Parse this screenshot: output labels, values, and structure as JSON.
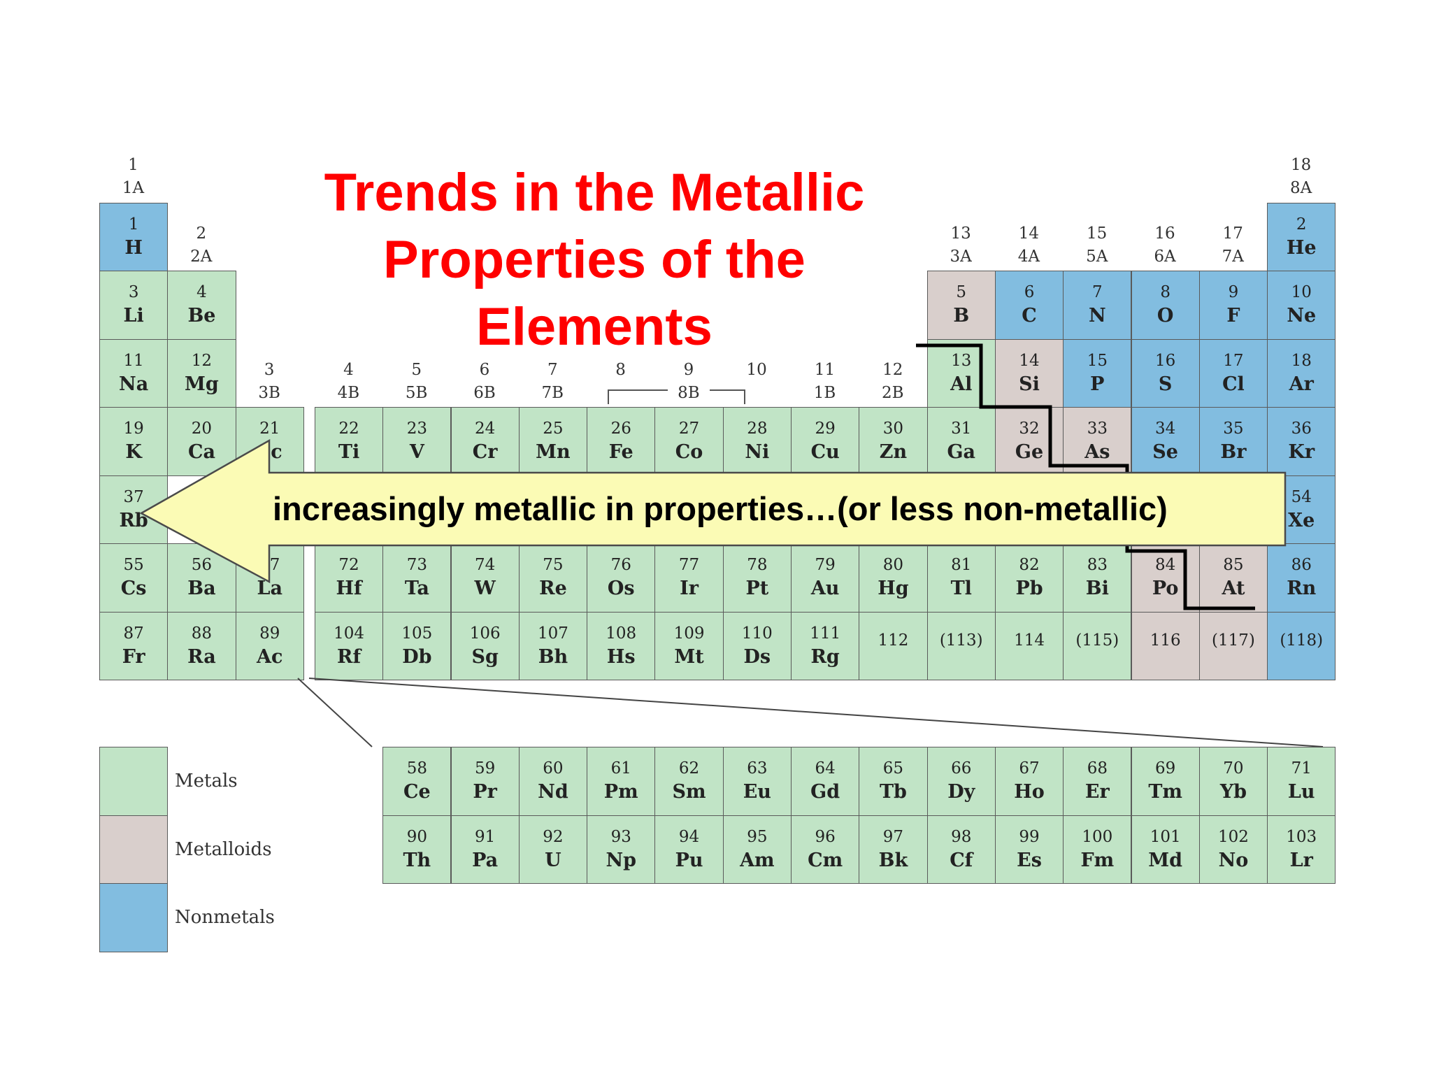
{
  "title": "Trends in the Metallic Properties of the Elements",
  "arrow_label": "increasingly metallic in properties…(or less non-metallic)",
  "colors": {
    "metal": "#c1e4c6",
    "metalloid": "#d9cfcc",
    "nonmetal": "#82bde0",
    "title": "#ff0000",
    "arrow_fill": "#fbfbb5"
  },
  "legend": [
    {
      "label": "Metals",
      "category": "metal"
    },
    {
      "label": "Metalloids",
      "category": "metalloid"
    },
    {
      "label": "Nonmetals",
      "category": "nonmetal"
    }
  ],
  "group_headers": [
    {
      "col": 1,
      "row": 0,
      "lines": [
        "1",
        "1A"
      ]
    },
    {
      "col": 2,
      "row": 1,
      "lines": [
        "2",
        "2A"
      ]
    },
    {
      "col": 3,
      "row": 3,
      "lines": [
        "3",
        "3B"
      ]
    },
    {
      "col": 4,
      "row": 3,
      "lines": [
        "4",
        "4B"
      ]
    },
    {
      "col": 5,
      "row": 3,
      "lines": [
        "5",
        "5B"
      ]
    },
    {
      "col": 6,
      "row": 3,
      "lines": [
        "6",
        "6B"
      ]
    },
    {
      "col": 7,
      "row": 3,
      "lines": [
        "7",
        "7B"
      ]
    },
    {
      "col": 8,
      "row": 3,
      "lines": [
        "8",
        ""
      ]
    },
    {
      "col": 9,
      "row": 3,
      "lines": [
        "9",
        "8B"
      ]
    },
    {
      "col": 10,
      "row": 3,
      "lines": [
        "10",
        ""
      ]
    },
    {
      "col": 11,
      "row": 3,
      "lines": [
        "11",
        "1B"
      ]
    },
    {
      "col": 12,
      "row": 3,
      "lines": [
        "12",
        "2B"
      ]
    },
    {
      "col": 13,
      "row": 1,
      "lines": [
        "13",
        "3A"
      ]
    },
    {
      "col": 14,
      "row": 1,
      "lines": [
        "14",
        "4A"
      ]
    },
    {
      "col": 15,
      "row": 1,
      "lines": [
        "15",
        "5A"
      ]
    },
    {
      "col": 16,
      "row": 1,
      "lines": [
        "16",
        "6A"
      ]
    },
    {
      "col": 17,
      "row": 1,
      "lines": [
        "17",
        "7A"
      ]
    },
    {
      "col": 18,
      "row": 0,
      "lines": [
        "18",
        "8A"
      ]
    }
  ],
  "elements": [
    {
      "n": "1",
      "s": "H",
      "row": 1,
      "col": 1,
      "t": "nonmetal"
    },
    {
      "n": "2",
      "s": "He",
      "row": 1,
      "col": 18,
      "t": "nonmetal"
    },
    {
      "n": "3",
      "s": "Li",
      "row": 2,
      "col": 1,
      "t": "metal"
    },
    {
      "n": "4",
      "s": "Be",
      "row": 2,
      "col": 2,
      "t": "metal"
    },
    {
      "n": "5",
      "s": "B",
      "row": 2,
      "col": 13,
      "t": "metalloid"
    },
    {
      "n": "6",
      "s": "C",
      "row": 2,
      "col": 14,
      "t": "nonmetal"
    },
    {
      "n": "7",
      "s": "N",
      "row": 2,
      "col": 15,
      "t": "nonmetal"
    },
    {
      "n": "8",
      "s": "O",
      "row": 2,
      "col": 16,
      "t": "nonmetal"
    },
    {
      "n": "9",
      "s": "F",
      "row": 2,
      "col": 17,
      "t": "nonmetal"
    },
    {
      "n": "10",
      "s": "Ne",
      "row": 2,
      "col": 18,
      "t": "nonmetal"
    },
    {
      "n": "11",
      "s": "Na",
      "row": 3,
      "col": 1,
      "t": "metal"
    },
    {
      "n": "12",
      "s": "Mg",
      "row": 3,
      "col": 2,
      "t": "metal"
    },
    {
      "n": "13",
      "s": "Al",
      "row": 3,
      "col": 13,
      "t": "metal"
    },
    {
      "n": "14",
      "s": "Si",
      "row": 3,
      "col": 14,
      "t": "metalloid"
    },
    {
      "n": "15",
      "s": "P",
      "row": 3,
      "col": 15,
      "t": "nonmetal"
    },
    {
      "n": "16",
      "s": "S",
      "row": 3,
      "col": 16,
      "t": "nonmetal"
    },
    {
      "n": "17",
      "s": "Cl",
      "row": 3,
      "col": 17,
      "t": "nonmetal"
    },
    {
      "n": "18",
      "s": "Ar",
      "row": 3,
      "col": 18,
      "t": "nonmetal"
    },
    {
      "n": "19",
      "s": "K",
      "row": 4,
      "col": 1,
      "t": "metal"
    },
    {
      "n": "20",
      "s": "Ca",
      "row": 4,
      "col": 2,
      "t": "metal"
    },
    {
      "n": "21",
      "s": "Sc",
      "row": 4,
      "col": 3,
      "t": "metal"
    },
    {
      "n": "22",
      "s": "Ti",
      "row": 4,
      "col": 4,
      "t": "metal"
    },
    {
      "n": "23",
      "s": "V",
      "row": 4,
      "col": 5,
      "t": "metal"
    },
    {
      "n": "24",
      "s": "Cr",
      "row": 4,
      "col": 6,
      "t": "metal"
    },
    {
      "n": "25",
      "s": "Mn",
      "row": 4,
      "col": 7,
      "t": "metal"
    },
    {
      "n": "26",
      "s": "Fe",
      "row": 4,
      "col": 8,
      "t": "metal"
    },
    {
      "n": "27",
      "s": "Co",
      "row": 4,
      "col": 9,
      "t": "metal"
    },
    {
      "n": "28",
      "s": "Ni",
      "row": 4,
      "col": 10,
      "t": "metal"
    },
    {
      "n": "29",
      "s": "Cu",
      "row": 4,
      "col": 11,
      "t": "metal"
    },
    {
      "n": "30",
      "s": "Zn",
      "row": 4,
      "col": 12,
      "t": "metal"
    },
    {
      "n": "31",
      "s": "Ga",
      "row": 4,
      "col": 13,
      "t": "metal"
    },
    {
      "n": "32",
      "s": "Ge",
      "row": 4,
      "col": 14,
      "t": "metalloid"
    },
    {
      "n": "33",
      "s": "As",
      "row": 4,
      "col": 15,
      "t": "metalloid"
    },
    {
      "n": "34",
      "s": "Se",
      "row": 4,
      "col": 16,
      "t": "nonmetal"
    },
    {
      "n": "35",
      "s": "Br",
      "row": 4,
      "col": 17,
      "t": "nonmetal"
    },
    {
      "n": "36",
      "s": "Kr",
      "row": 4,
      "col": 18,
      "t": "nonmetal"
    },
    {
      "n": "37",
      "s": "Rb",
      "row": 5,
      "col": 1,
      "t": "metal"
    },
    {
      "n": "54",
      "s": "Xe",
      "row": 5,
      "col": 18,
      "t": "nonmetal"
    },
    {
      "n": "55",
      "s": "Cs",
      "row": 6,
      "col": 1,
      "t": "metal"
    },
    {
      "n": "56",
      "s": "Ba",
      "row": 6,
      "col": 2,
      "t": "metal"
    },
    {
      "n": "57",
      "s": "La",
      "row": 6,
      "col": 3,
      "t": "metal"
    },
    {
      "n": "72",
      "s": "Hf",
      "row": 6,
      "col": 4,
      "t": "metal"
    },
    {
      "n": "73",
      "s": "Ta",
      "row": 6,
      "col": 5,
      "t": "metal"
    },
    {
      "n": "74",
      "s": "W",
      "row": 6,
      "col": 6,
      "t": "metal"
    },
    {
      "n": "75",
      "s": "Re",
      "row": 6,
      "col": 7,
      "t": "metal"
    },
    {
      "n": "76",
      "s": "Os",
      "row": 6,
      "col": 8,
      "t": "metal"
    },
    {
      "n": "77",
      "s": "Ir",
      "row": 6,
      "col": 9,
      "t": "metal"
    },
    {
      "n": "78",
      "s": "Pt",
      "row": 6,
      "col": 10,
      "t": "metal"
    },
    {
      "n": "79",
      "s": "Au",
      "row": 6,
      "col": 11,
      "t": "metal"
    },
    {
      "n": "80",
      "s": "Hg",
      "row": 6,
      "col": 12,
      "t": "metal"
    },
    {
      "n": "81",
      "s": "Tl",
      "row": 6,
      "col": 13,
      "t": "metal"
    },
    {
      "n": "82",
      "s": "Pb",
      "row": 6,
      "col": 14,
      "t": "metal"
    },
    {
      "n": "83",
      "s": "Bi",
      "row": 6,
      "col": 15,
      "t": "metal"
    },
    {
      "n": "84",
      "s": "Po",
      "row": 6,
      "col": 16,
      "t": "metalloid"
    },
    {
      "n": "85",
      "s": "At",
      "row": 6,
      "col": 17,
      "t": "metalloid"
    },
    {
      "n": "86",
      "s": "Rn",
      "row": 6,
      "col": 18,
      "t": "nonmetal"
    },
    {
      "n": "87",
      "s": "Fr",
      "row": 7,
      "col": 1,
      "t": "metal"
    },
    {
      "n": "88",
      "s": "Ra",
      "row": 7,
      "col": 2,
      "t": "metal"
    },
    {
      "n": "89",
      "s": "Ac",
      "row": 7,
      "col": 3,
      "t": "metal"
    },
    {
      "n": "104",
      "s": "Rf",
      "row": 7,
      "col": 4,
      "t": "metal"
    },
    {
      "n": "105",
      "s": "Db",
      "row": 7,
      "col": 5,
      "t": "metal"
    },
    {
      "n": "106",
      "s": "Sg",
      "row": 7,
      "col": 6,
      "t": "metal"
    },
    {
      "n": "107",
      "s": "Bh",
      "row": 7,
      "col": 7,
      "t": "metal"
    },
    {
      "n": "108",
      "s": "Hs",
      "row": 7,
      "col": 8,
      "t": "metal"
    },
    {
      "n": "109",
      "s": "Mt",
      "row": 7,
      "col": 9,
      "t": "metal"
    },
    {
      "n": "110",
      "s": "Ds",
      "row": 7,
      "col": 10,
      "t": "metal"
    },
    {
      "n": "111",
      "s": "Rg",
      "row": 7,
      "col": 11,
      "t": "metal"
    },
    {
      "n": "112",
      "s": "",
      "row": 7,
      "col": 12,
      "t": "metal"
    },
    {
      "n": "(113)",
      "s": "",
      "row": 7,
      "col": 13,
      "t": "metal"
    },
    {
      "n": "114",
      "s": "",
      "row": 7,
      "col": 14,
      "t": "metal"
    },
    {
      "n": "(115)",
      "s": "",
      "row": 7,
      "col": 15,
      "t": "metal"
    },
    {
      "n": "116",
      "s": "",
      "row": 7,
      "col": 16,
      "t": "metalloid"
    },
    {
      "n": "(117)",
      "s": "",
      "row": 7,
      "col": 17,
      "t": "metalloid"
    },
    {
      "n": "(118)",
      "s": "",
      "row": 7,
      "col": 18,
      "t": "nonmetal"
    },
    {
      "n": "58",
      "s": "Ce",
      "row": 9,
      "col": 5,
      "t": "metal"
    },
    {
      "n": "59",
      "s": "Pr",
      "row": 9,
      "col": 6,
      "t": "metal"
    },
    {
      "n": "60",
      "s": "Nd",
      "row": 9,
      "col": 7,
      "t": "metal"
    },
    {
      "n": "61",
      "s": "Pm",
      "row": 9,
      "col": 8,
      "t": "metal"
    },
    {
      "n": "62",
      "s": "Sm",
      "row": 9,
      "col": 9,
      "t": "metal"
    },
    {
      "n": "63",
      "s": "Eu",
      "row": 9,
      "col": 10,
      "t": "metal"
    },
    {
      "n": "64",
      "s": "Gd",
      "row": 9,
      "col": 11,
      "t": "metal"
    },
    {
      "n": "65",
      "s": "Tb",
      "row": 9,
      "col": 12,
      "t": "metal"
    },
    {
      "n": "66",
      "s": "Dy",
      "row": 9,
      "col": 13,
      "t": "metal"
    },
    {
      "n": "67",
      "s": "Ho",
      "row": 9,
      "col": 14,
      "t": "metal"
    },
    {
      "n": "68",
      "s": "Er",
      "row": 9,
      "col": 15,
      "t": "metal"
    },
    {
      "n": "69",
      "s": "Tm",
      "row": 9,
      "col": 16,
      "t": "metal"
    },
    {
      "n": "70",
      "s": "Yb",
      "row": 9,
      "col": 17,
      "t": "metal"
    },
    {
      "n": "71",
      "s": "Lu",
      "row": 9,
      "col": 18,
      "t": "metal"
    },
    {
      "n": "90",
      "s": "Th",
      "row": 10,
      "col": 5,
      "t": "metal"
    },
    {
      "n": "91",
      "s": "Pa",
      "row": 10,
      "col": 6,
      "t": "metal"
    },
    {
      "n": "92",
      "s": "U",
      "row": 10,
      "col": 7,
      "t": "metal"
    },
    {
      "n": "93",
      "s": "Np",
      "row": 10,
      "col": 8,
      "t": "metal"
    },
    {
      "n": "94",
      "s": "Pu",
      "row": 10,
      "col": 9,
      "t": "metal"
    },
    {
      "n": "95",
      "s": "Am",
      "row": 10,
      "col": 10,
      "t": "metal"
    },
    {
      "n": "96",
      "s": "Cm",
      "row": 10,
      "col": 11,
      "t": "metal"
    },
    {
      "n": "97",
      "s": "Bk",
      "row": 10,
      "col": 12,
      "t": "metal"
    },
    {
      "n": "98",
      "s": "Cf",
      "row": 10,
      "col": 13,
      "t": "metal"
    },
    {
      "n": "99",
      "s": "Es",
      "row": 10,
      "col": 14,
      "t": "metal"
    },
    {
      "n": "100",
      "s": "Fm",
      "row": 10,
      "col": 15,
      "t": "metal"
    },
    {
      "n": "101",
      "s": "Md",
      "row": 10,
      "col": 16,
      "t": "metal"
    },
    {
      "n": "102",
      "s": "No",
      "row": 10,
      "col": 17,
      "t": "metal"
    },
    {
      "n": "103",
      "s": "Lr",
      "row": 10,
      "col": 18,
      "t": "metal"
    }
  ]
}
